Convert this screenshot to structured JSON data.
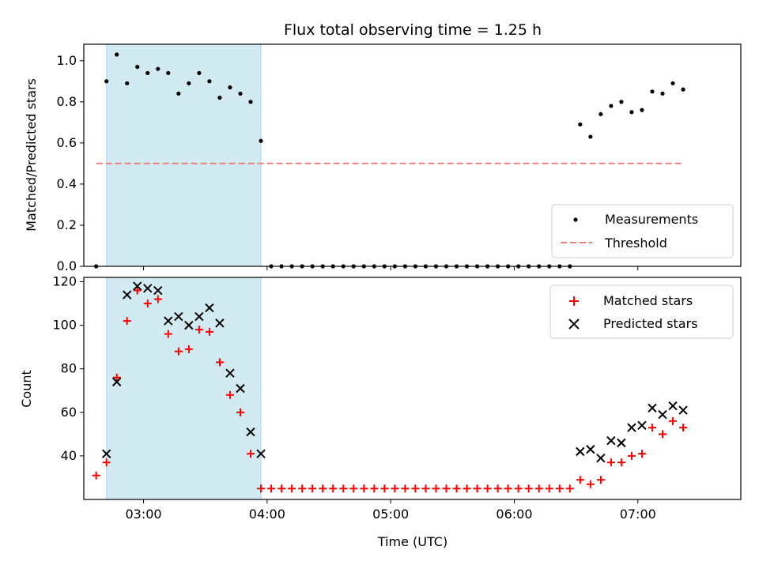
{
  "chart_data": [
    {
      "type": "scatter",
      "title": "Flux total observing time = 1.25 h",
      "xlabel": "",
      "ylabel": "Matched/Predicted stars",
      "x_axis": "Time (UTC)",
      "xlim": [
        "02:31",
        "07:50"
      ],
      "ylim": [
        0,
        1.08
      ],
      "yticks": [
        0.0,
        0.2,
        0.4,
        0.6,
        0.8,
        1.0
      ],
      "ytick_labels": [
        "0.0",
        "0.2",
        "0.4",
        "0.6",
        "0.8",
        "1.0"
      ],
      "legend_position": "lower-right",
      "shaded_interval": {
        "start": "02:42",
        "end": "03:57",
        "color": "#add8e6"
      },
      "series": [
        {
          "name": "Measurements",
          "marker": "dot",
          "color": "#000000",
          "x": [
            "02:37",
            "02:42",
            "02:47",
            "02:52",
            "02:57",
            "03:02",
            "03:07",
            "03:12",
            "03:17",
            "03:22",
            "03:27",
            "03:32",
            "03:37",
            "03:42",
            "03:47",
            "03:52",
            "03:57",
            "04:02",
            "04:07",
            "04:12",
            "04:17",
            "04:22",
            "04:27",
            "04:32",
            "04:37",
            "04:42",
            "04:47",
            "04:52",
            "04:57",
            "05:02",
            "05:07",
            "05:12",
            "05:17",
            "05:22",
            "05:27",
            "05:32",
            "05:37",
            "05:42",
            "05:47",
            "05:52",
            "05:57",
            "06:02",
            "06:07",
            "06:12",
            "06:17",
            "06:22",
            "06:27",
            "06:32",
            "06:37",
            "06:42",
            "06:47",
            "06:52",
            "06:57",
            "07:02",
            "07:07",
            "07:12",
            "07:17",
            "07:22"
          ],
          "y": [
            0.0,
            0.9,
            1.03,
            0.89,
            0.97,
            0.94,
            0.96,
            0.94,
            0.84,
            0.89,
            0.94,
            0.9,
            0.82,
            0.87,
            0.84,
            0.8,
            0.61,
            0.0,
            0.0,
            0.0,
            0.0,
            0.0,
            0.0,
            0.0,
            0.0,
            0.0,
            0.0,
            0.0,
            0.0,
            0.0,
            0.0,
            0.0,
            0.0,
            0.0,
            0.0,
            0.0,
            0.0,
            0.0,
            0.0,
            0.0,
            0.0,
            0.0,
            0.0,
            0.0,
            0.0,
            0.0,
            0.0,
            0.69,
            0.63,
            0.74,
            0.78,
            0.8,
            0.75,
            0.76,
            0.85,
            0.84,
            0.89,
            0.86
          ]
        },
        {
          "name": "Threshold",
          "marker": "dashed-line",
          "color": "#f08080",
          "x": [
            "02:37",
            "07:22"
          ],
          "y": [
            0.5,
            0.5
          ]
        }
      ]
    },
    {
      "type": "scatter",
      "title": "",
      "xlabel": "Time (UTC)",
      "ylabel": "Count",
      "xlim": [
        "02:31",
        "07:50"
      ],
      "ylim": [
        20,
        122
      ],
      "yticks": [
        40,
        60,
        80,
        100,
        120
      ],
      "xticks": [
        "03:00",
        "04:00",
        "05:00",
        "06:00",
        "07:00"
      ],
      "legend_position": "upper-right",
      "shaded_interval": {
        "start": "02:42",
        "end": "03:57",
        "color": "#add8e6"
      },
      "series": [
        {
          "name": "Matched stars",
          "marker": "plus",
          "color": "#ff0000",
          "x": [
            "02:37",
            "02:42",
            "02:47",
            "02:52",
            "02:57",
            "03:02",
            "03:07",
            "03:12",
            "03:17",
            "03:22",
            "03:27",
            "03:32",
            "03:37",
            "03:42",
            "03:47",
            "03:52",
            "03:57",
            "04:02",
            "04:07",
            "04:12",
            "04:17",
            "04:22",
            "04:27",
            "04:32",
            "04:37",
            "04:42",
            "04:47",
            "04:52",
            "04:57",
            "05:02",
            "05:07",
            "05:12",
            "05:17",
            "05:22",
            "05:27",
            "05:32",
            "05:37",
            "05:42",
            "05:47",
            "05:52",
            "05:57",
            "06:02",
            "06:07",
            "06:12",
            "06:17",
            "06:22",
            "06:27",
            "06:32",
            "06:37",
            "06:42",
            "06:47",
            "06:52",
            "06:57",
            "07:02",
            "07:07",
            "07:12",
            "07:17",
            "07:22"
          ],
          "y": [
            31,
            37,
            76,
            102,
            116,
            110,
            112,
            96,
            88,
            89,
            98,
            97,
            83,
            68,
            60,
            41,
            25,
            25,
            25,
            25,
            25,
            25,
            25,
            25,
            25,
            25,
            25,
            25,
            25,
            25,
            25,
            25,
            25,
            25,
            25,
            25,
            25,
            25,
            25,
            25,
            25,
            25,
            25,
            25,
            25,
            25,
            25,
            29,
            27,
            29,
            37,
            37,
            40,
            41,
            53,
            50,
            56,
            53
          ]
        },
        {
          "name": "Predicted stars",
          "marker": "x",
          "color": "#000000",
          "x": [
            "02:42",
            "02:47",
            "02:52",
            "02:57",
            "03:02",
            "03:07",
            "03:12",
            "03:17",
            "03:22",
            "03:27",
            "03:32",
            "03:37",
            "03:42",
            "03:47",
            "03:52",
            "03:57",
            "06:32",
            "06:37",
            "06:42",
            "06:47",
            "06:52",
            "06:57",
            "07:02",
            "07:07",
            "07:12",
            "07:17",
            "07:22"
          ],
          "y": [
            41,
            74,
            114,
            118,
            117,
            116,
            102,
            104,
            100,
            104,
            108,
            101,
            78,
            71,
            51,
            41,
            42,
            43,
            39,
            47,
            46,
            53,
            54,
            62,
            59,
            63,
            61
          ]
        }
      ]
    }
  ]
}
